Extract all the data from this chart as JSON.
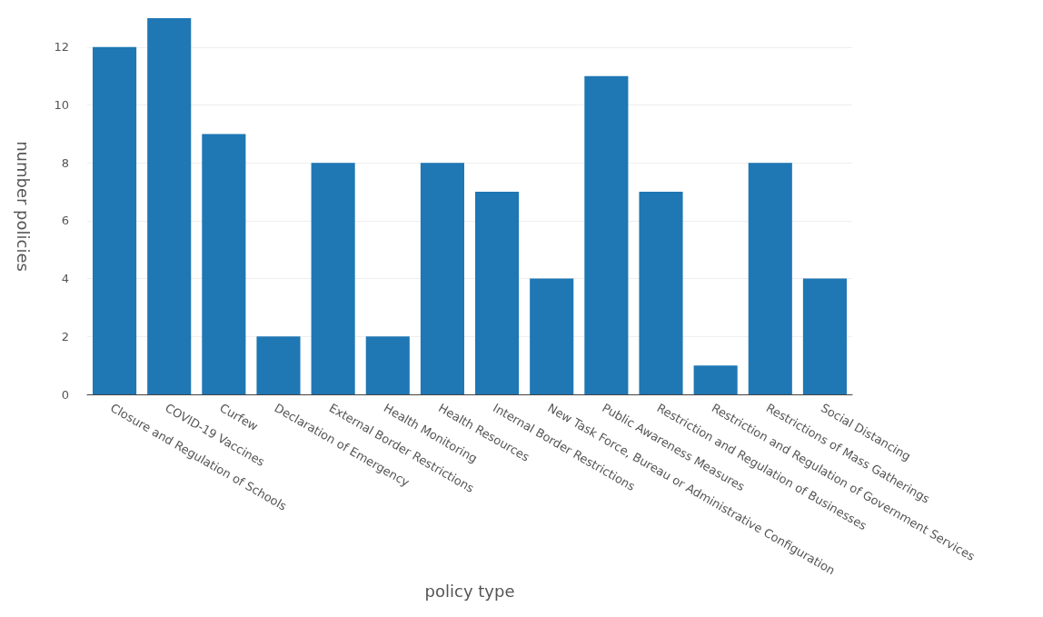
{
  "chart_data": {
    "type": "bar",
    "xlabel": "policy type",
    "ylabel": "number policies",
    "categories": [
      "Closure and Regulation of Schools",
      "COVID-19 Vaccines",
      "Curfew",
      "Declaration of Emergency",
      "External Border Restrictions",
      "Health Monitoring",
      "Health Resources",
      "Internal Border Restrictions",
      "New Task Force, Bureau or Administrative Configuration",
      "Public Awareness Measures",
      "Restriction and Regulation of Businesses",
      "Restriction and Regulation of Government Services",
      "Restrictions of Mass Gatherings",
      "Social Distancing"
    ],
    "values": [
      12,
      13,
      9,
      2,
      8,
      2,
      8,
      7,
      4,
      11,
      7,
      1,
      8,
      4
    ],
    "color": "#1f77b4",
    "ylim": [
      0,
      13
    ],
    "yticks": [
      0,
      2,
      4,
      6,
      8,
      10,
      12
    ],
    "grid": "y"
  }
}
